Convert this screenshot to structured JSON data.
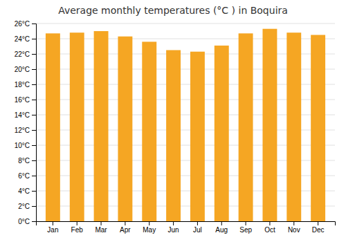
{
  "chart_data": {
    "type": "bar",
    "title": "Average monthly temperatures (°C ) in Boquira",
    "categories": [
      "Jan",
      "Feb",
      "Mar",
      "Apr",
      "May",
      "Jun",
      "Jul",
      "Aug",
      "Sep",
      "Oct",
      "Nov",
      "Dec"
    ],
    "values": [
      24.7,
      24.8,
      25.0,
      24.3,
      23.6,
      22.5,
      22.3,
      23.1,
      24.7,
      25.3,
      24.8,
      24.5
    ],
    "color": "#F5A623",
    "ylim": [
      0,
      26
    ],
    "yticks": [
      {
        "value": 0,
        "label": "0°C"
      },
      {
        "value": 2,
        "label": "2°C"
      },
      {
        "value": 4,
        "label": "4°C"
      },
      {
        "value": 6,
        "label": "6°C"
      },
      {
        "value": 8,
        "label": "8°C"
      },
      {
        "value": 10,
        "label": "10°C"
      },
      {
        "value": 12,
        "label": "12°C"
      },
      {
        "value": 14,
        "label": "14°C"
      },
      {
        "value": 16,
        "label": "16°C"
      },
      {
        "value": 18,
        "label": "18°C"
      },
      {
        "value": 20,
        "label": "20°C"
      },
      {
        "value": 22,
        "label": "22°C"
      },
      {
        "value": 24,
        "label": "24°C"
      },
      {
        "value": 26,
        "label": "26°C"
      }
    ],
    "grid": true
  }
}
